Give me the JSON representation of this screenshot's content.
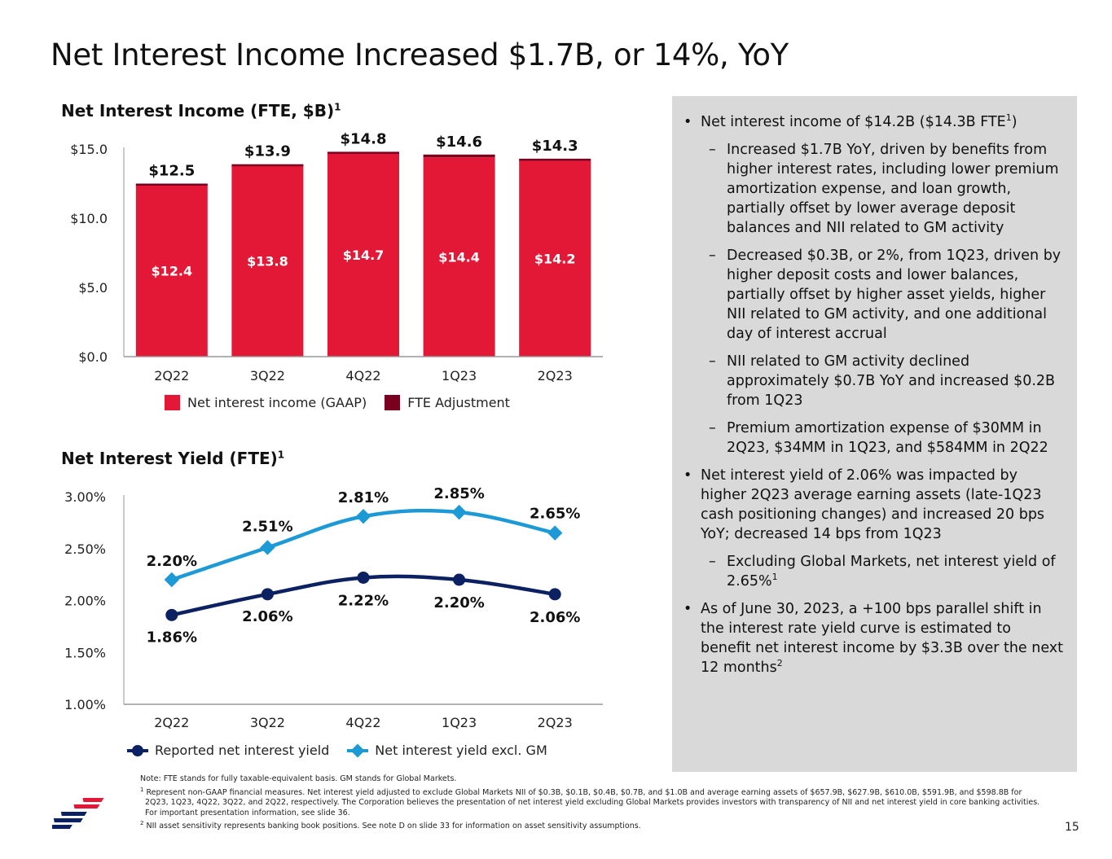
{
  "page": {
    "title": "Net Interest Income Increased $1.7B, or 14%, YoY",
    "page_number": "15"
  },
  "colors": {
    "gaap": "#e31837",
    "fte": "#7a0020",
    "reported": "#0b2161",
    "excl_gm": "#1d9ad6",
    "panel": "#d9d9d9"
  },
  "bar_chart": {
    "title": "Net Interest Income (FTE, $B)",
    "title_sup": "1",
    "legend_gaap": "Net interest income (GAAP)",
    "legend_fte": "FTE Adjustment"
  },
  "line_chart": {
    "title": "Net Interest Yield (FTE)",
    "title_sup": "1",
    "legend_reported": "Reported net interest yield",
    "legend_excl": "Net interest yield excl. GM"
  },
  "chart_data": [
    {
      "type": "bar",
      "stacked": true,
      "title": "Net Interest Income (FTE, $B)",
      "categories": [
        "2Q22",
        "3Q22",
        "4Q22",
        "1Q23",
        "2Q23"
      ],
      "series": [
        {
          "name": "Net interest income (GAAP)",
          "values": [
            12.4,
            13.8,
            14.7,
            14.4,
            14.2
          ],
          "labels": [
            "$12.4",
            "$13.8",
            "$14.7",
            "$14.4",
            "$14.2"
          ]
        },
        {
          "name": "FTE Adjustment",
          "values": [
            0.1,
            0.1,
            0.1,
            0.2,
            0.1
          ]
        }
      ],
      "totals": [
        12.5,
        13.9,
        14.8,
        14.6,
        14.3
      ],
      "total_labels": [
        "$12.5",
        "$13.9",
        "$14.8",
        "$14.6",
        "$14.3"
      ],
      "yticks": [
        0,
        5,
        10,
        15
      ],
      "ytick_labels": [
        "$0.0",
        "$5.0",
        "$10.0",
        "$15.0"
      ],
      "ylim": [
        0,
        15
      ],
      "legend": "bottom"
    },
    {
      "type": "line",
      "title": "Net Interest Yield (FTE)",
      "categories": [
        "2Q22",
        "3Q22",
        "4Q22",
        "1Q23",
        "2Q23"
      ],
      "series": [
        {
          "name": "Reported net interest yield",
          "values": [
            1.86,
            2.06,
            2.22,
            2.2,
            2.06
          ],
          "labels": [
            "1.86%",
            "2.06%",
            "2.22%",
            "2.20%",
            "2.06%"
          ],
          "marker": "circle"
        },
        {
          "name": "Net interest yield excl. GM",
          "values": [
            2.2,
            2.51,
            2.81,
            2.85,
            2.65
          ],
          "labels": [
            "2.20%",
            "2.51%",
            "2.81%",
            "2.85%",
            "2.65%"
          ],
          "marker": "diamond"
        }
      ],
      "yticks": [
        1.0,
        1.5,
        2.0,
        2.5,
        3.0
      ],
      "ytick_labels": [
        "1.00%",
        "1.50%",
        "2.00%",
        "2.50%",
        "3.00%"
      ],
      "ylim": [
        1.0,
        3.0
      ],
      "legend": "bottom"
    }
  ],
  "panel": {
    "b1": {
      "pre": "Net interest income of $14.2B ($14.3B FTE",
      "sup": "1",
      "post": ")"
    },
    "b1_s1": "Increased $1.7B YoY, driven by benefits from higher interest rates, including lower premium amortization expense, and loan growth, partially offset by lower average deposit balances and NII related to GM activity",
    "b1_s2": "Decreased $0.3B, or 2%, from 1Q23, driven by higher deposit costs and lower balances, partially offset by higher asset yields, higher NII related to GM activity, and one additional day of interest accrual",
    "b1_s3": "NII related to GM activity declined approximately $0.7B YoY and increased $0.2B from 1Q23",
    "b1_s4": "Premium amortization expense of $30MM in 2Q23, $34MM in 1Q23, and $584MM in 2Q22",
    "b2": "Net interest yield of 2.06% was impacted by higher 2Q23 average earning assets (late-1Q23 cash positioning changes) and increased 20 bps YoY; decreased 14 bps from 1Q23",
    "b2_s1": {
      "text": "Excluding Global Markets, net interest yield of 2.65%",
      "sup": "1"
    },
    "b3": {
      "text": "As of June 30, 2023, a +100 bps parallel shift in the interest rate yield curve is estimated to benefit net interest income by $3.3B over the next 12 months",
      "sup": "2"
    }
  },
  "footnotes": {
    "note": "Note: FTE stands for fully taxable-equivalent basis. GM stands for Global Markets.",
    "fn1_mark": "1",
    "fn1": "Represent non-GAAP financial measures. Net interest yield adjusted to exclude Global Markets NII of $0.3B, $0.1B, $0.4B, $0.7B, and $1.0B and average earning assets of $657.9B, $627.9B, $610.0B, $591.9B, and $598.8B for 2Q23, 1Q23, 4Q22, 3Q22, and 2Q22, respectively. The Corporation believes the presentation of net interest yield excluding Global Markets provides investors with transparency of NII and net interest yield in core banking activities. For important presentation information, see slide 36.",
    "fn2_mark": "2",
    "fn2": "NII asset sensitivity represents banking book positions. See note D on slide 33 for information on asset sensitivity assumptions."
  }
}
